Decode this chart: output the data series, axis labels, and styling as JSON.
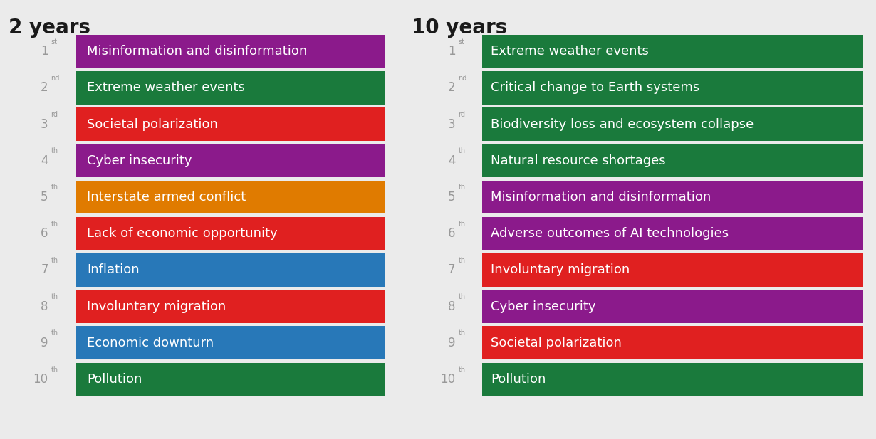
{
  "background_color": "#ebebeb",
  "title_2y": "2 years",
  "title_10y": "10 years",
  "title_fontsize": 20,
  "rank_fontsize": 12,
  "label_fontsize": 13,
  "left_items": [
    {
      "rank": "1",
      "suffix": "st",
      "label": "Misinformation and disinformation",
      "color": "#8B1A8B"
    },
    {
      "rank": "2",
      "suffix": "nd",
      "label": "Extreme weather events",
      "color": "#1a7a3c"
    },
    {
      "rank": "3",
      "suffix": "rd",
      "label": "Societal polarization",
      "color": "#e02020"
    },
    {
      "rank": "4",
      "suffix": "th",
      "label": "Cyber insecurity",
      "color": "#8B1A8B"
    },
    {
      "rank": "5",
      "suffix": "th",
      "label": "Interstate armed conflict",
      "color": "#e07b00"
    },
    {
      "rank": "6",
      "suffix": "th",
      "label": "Lack of economic opportunity",
      "color": "#e02020"
    },
    {
      "rank": "7",
      "suffix": "th",
      "label": "Inflation",
      "color": "#2878b8"
    },
    {
      "rank": "8",
      "suffix": "th",
      "label": "Involuntary migration",
      "color": "#e02020"
    },
    {
      "rank": "9",
      "suffix": "th",
      "label": "Economic downturn",
      "color": "#2878b8"
    },
    {
      "rank": "10",
      "suffix": "th",
      "label": "Pollution",
      "color": "#1a7a3c"
    }
  ],
  "right_items": [
    {
      "rank": "1",
      "suffix": "st",
      "label": "Extreme weather events",
      "color": "#1a7a3c"
    },
    {
      "rank": "2",
      "suffix": "nd",
      "label": "Critical change to Earth systems",
      "color": "#1a7a3c"
    },
    {
      "rank": "3",
      "suffix": "rd",
      "label": "Biodiversity loss and ecosystem collapse",
      "color": "#1a7a3c"
    },
    {
      "rank": "4",
      "suffix": "th",
      "label": "Natural resource shortages",
      "color": "#1a7a3c"
    },
    {
      "rank": "5",
      "suffix": "th",
      "label": "Misinformation and disinformation",
      "color": "#8B1A8B"
    },
    {
      "rank": "6",
      "suffix": "th",
      "label": "Adverse outcomes of AI technologies",
      "color": "#8B1A8B"
    },
    {
      "rank": "7",
      "suffix": "th",
      "label": "Involuntary migration",
      "color": "#e02020"
    },
    {
      "rank": "8",
      "suffix": "th",
      "label": "Cyber insecurity",
      "color": "#8B1A8B"
    },
    {
      "rank": "9",
      "suffix": "th",
      "label": "Societal polarization",
      "color": "#e02020"
    },
    {
      "rank": "10",
      "suffix": "th",
      "label": "Pollution",
      "color": "#1a7a3c"
    }
  ]
}
